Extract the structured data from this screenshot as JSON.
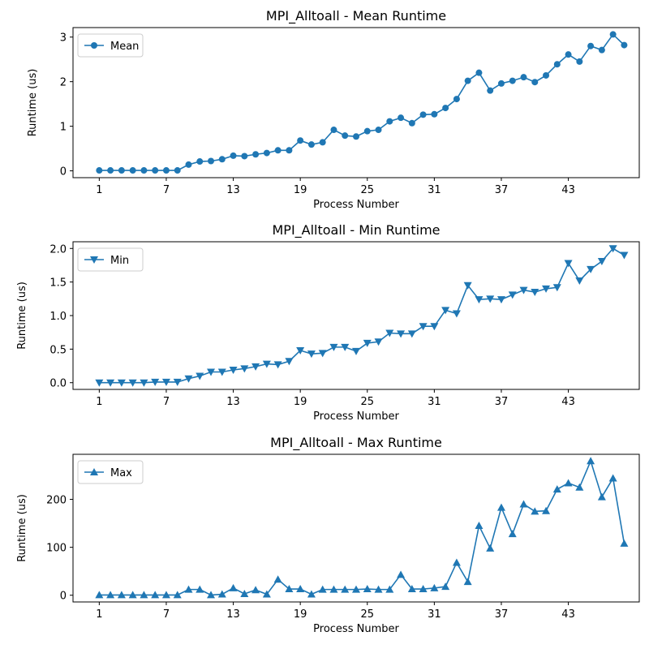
{
  "colors": {
    "series": "#1f77b4",
    "axis": "#000000",
    "legend_border": "#cccccc"
  },
  "chart_data": [
    {
      "type": "line",
      "title": "MPI_Alltoall - Mean Runtime",
      "xlabel": "Process Number",
      "ylabel": "Runtime (us)",
      "xlim": [
        -1.35,
        49.35
      ],
      "ylim": [
        -0.153,
        3.213
      ],
      "xticks": [
        1,
        7,
        13,
        19,
        25,
        31,
        37,
        43
      ],
      "yticks": [
        0,
        1,
        2,
        3
      ],
      "ytick_labels": [
        "0",
        "1",
        "2",
        "3"
      ],
      "legend_position": "upper-left",
      "marker": "circle",
      "series": [
        {
          "name": "Mean",
          "x": [
            1,
            2,
            3,
            4,
            5,
            6,
            7,
            8,
            9,
            10,
            11,
            12,
            13,
            14,
            15,
            16,
            17,
            18,
            19,
            20,
            21,
            22,
            23,
            24,
            25,
            26,
            27,
            28,
            29,
            30,
            31,
            32,
            33,
            34,
            35,
            36,
            37,
            38,
            39,
            40,
            41,
            42,
            43,
            44,
            45,
            46,
            47,
            48
          ],
          "values": [
            0.01,
            0.01,
            0.01,
            0.01,
            0.01,
            0.01,
            0.01,
            0.01,
            0.14,
            0.21,
            0.22,
            0.26,
            0.34,
            0.33,
            0.37,
            0.4,
            0.46,
            0.46,
            0.68,
            0.59,
            0.64,
            0.92,
            0.79,
            0.77,
            0.89,
            0.92,
            1.11,
            1.19,
            1.07,
            1.26,
            1.27,
            1.41,
            1.61,
            2.02,
            2.2,
            1.8,
            1.96,
            2.02,
            2.1,
            1.99,
            2.14,
            2.39,
            2.61,
            2.45,
            2.8,
            2.71,
            3.06,
            2.82
          ]
        }
      ]
    },
    {
      "type": "line",
      "title": "MPI_Alltoall - Min Runtime",
      "xlabel": "Process Number",
      "ylabel": "Runtime (us)",
      "xlim": [
        -1.35,
        49.35
      ],
      "ylim": [
        -0.1,
        2.1
      ],
      "xticks": [
        1,
        7,
        13,
        19,
        25,
        31,
        37,
        43
      ],
      "yticks": [
        0,
        0.5,
        1.0,
        1.5,
        2.0
      ],
      "ytick_labels": [
        "0.0",
        "0.5",
        "1.0",
        "1.5",
        "2.0"
      ],
      "legend_position": "upper-left",
      "marker": "triangle-down",
      "series": [
        {
          "name": "Min",
          "x": [
            1,
            2,
            3,
            4,
            5,
            6,
            7,
            8,
            9,
            10,
            11,
            12,
            13,
            14,
            15,
            16,
            17,
            18,
            19,
            20,
            21,
            22,
            23,
            24,
            25,
            26,
            27,
            28,
            29,
            30,
            31,
            32,
            33,
            34,
            35,
            36,
            37,
            38,
            39,
            40,
            41,
            42,
            43,
            44,
            45,
            46,
            47,
            48
          ],
          "values": [
            0.0,
            0.0,
            0.0,
            0.0,
            0.0,
            0.01,
            0.01,
            0.01,
            0.06,
            0.1,
            0.16,
            0.16,
            0.19,
            0.21,
            0.24,
            0.28,
            0.27,
            0.32,
            0.48,
            0.43,
            0.44,
            0.53,
            0.53,
            0.47,
            0.59,
            0.61,
            0.74,
            0.73,
            0.73,
            0.84,
            0.84,
            1.08,
            1.03,
            1.45,
            1.24,
            1.25,
            1.24,
            1.31,
            1.38,
            1.35,
            1.4,
            1.42,
            1.78,
            1.52,
            1.69,
            1.81,
            2.0,
            1.9
          ]
        }
      ]
    },
    {
      "type": "line",
      "title": "MPI_Alltoall - Max Runtime",
      "xlabel": "Process Number",
      "ylabel": "Runtime (us)",
      "xlim": [
        -1.35,
        49.35
      ],
      "ylim": [
        -14,
        294
      ],
      "xticks": [
        1,
        7,
        13,
        19,
        25,
        31,
        37,
        43
      ],
      "yticks": [
        0,
        100,
        200
      ],
      "ytick_labels": [
        "0",
        "100",
        "200"
      ],
      "legend_position": "upper-left",
      "marker": "triangle-up",
      "series": [
        {
          "name": "Max",
          "x": [
            1,
            2,
            3,
            4,
            5,
            6,
            7,
            8,
            9,
            10,
            11,
            12,
            13,
            14,
            15,
            16,
            17,
            18,
            19,
            20,
            21,
            22,
            23,
            24,
            25,
            26,
            27,
            28,
            29,
            30,
            31,
            32,
            33,
            34,
            35,
            36,
            37,
            38,
            39,
            40,
            41,
            42,
            43,
            44,
            45,
            46,
            47,
            48
          ],
          "values": [
            0.5,
            0.5,
            0.5,
            0.5,
            0.5,
            0.5,
            0.5,
            0.5,
            12,
            12,
            0.5,
            2,
            15,
            3,
            11,
            2,
            33,
            13,
            13,
            2,
            12,
            12,
            12,
            12,
            13,
            12,
            12,
            43,
            13,
            13,
            15,
            18,
            68,
            28,
            145,
            98,
            183,
            128,
            190,
            175,
            176,
            221,
            234,
            225,
            280,
            205,
            244,
            108
          ]
        }
      ]
    }
  ]
}
